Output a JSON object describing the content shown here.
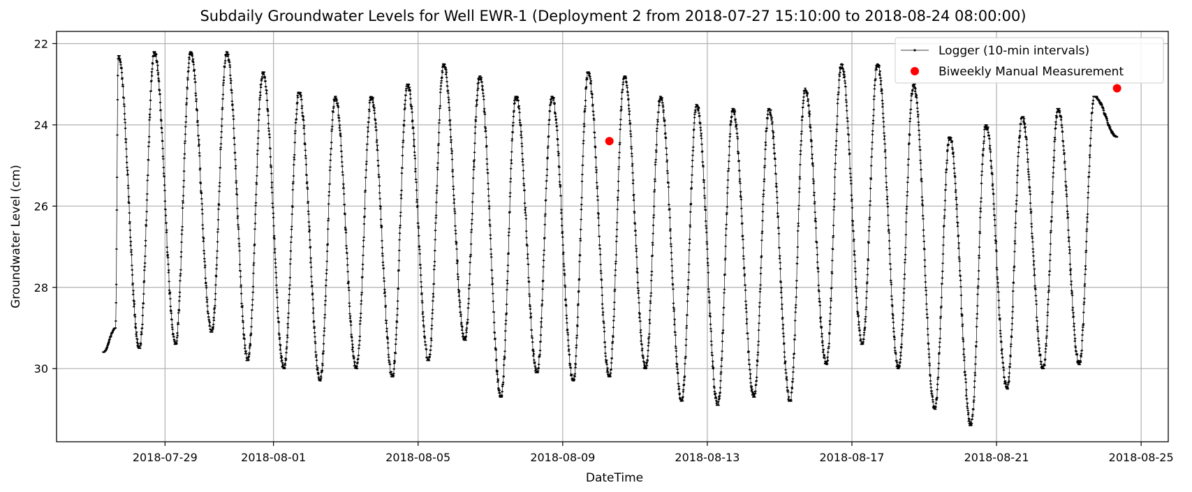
{
  "chart_data": {
    "type": "line",
    "title": "Subdaily Groundwater Levels for Well EWR-1 (Deployment 2 from 2018-07-27 15:10:00 to 2018-08-24 08:00:00)",
    "xlabel": "DateTime",
    "ylabel": "Groundwater Level (cm)",
    "xlim": [
      "2018-07-26 00:00",
      "2018-08-25 18:00"
    ],
    "ylim": [
      31.8,
      21.7
    ],
    "y_inverted": true,
    "grid": true,
    "legend_position": "top-right",
    "x_ticks": [
      "2018-07-29",
      "2018-08-01",
      "2018-08-05",
      "2018-08-09",
      "2018-08-13",
      "2018-08-17",
      "2018-08-21",
      "2018-08-25"
    ],
    "y_ticks": [
      22,
      24,
      26,
      28,
      30
    ],
    "logger": {
      "name": "Logger (10-min intervals)",
      "color": "#000000",
      "daily_cycles": [
        {
          "date": "2018-07-27",
          "min_level": 29.6,
          "max_level": 22.3
        },
        {
          "date": "2018-07-28",
          "min_level": 29.5,
          "max_level": 22.2
        },
        {
          "date": "2018-07-29",
          "min_level": 29.4,
          "max_level": 22.2
        },
        {
          "date": "2018-07-30",
          "min_level": 29.1,
          "max_level": 22.2
        },
        {
          "date": "2018-07-31",
          "min_level": 29.8,
          "max_level": 22.7
        },
        {
          "date": "2018-08-01",
          "min_level": 30.0,
          "max_level": 23.2
        },
        {
          "date": "2018-08-02",
          "min_level": 30.3,
          "max_level": 23.3
        },
        {
          "date": "2018-08-03",
          "min_level": 30.0,
          "max_level": 23.3
        },
        {
          "date": "2018-08-04",
          "min_level": 30.2,
          "max_level": 23.0
        },
        {
          "date": "2018-08-05",
          "min_level": 29.8,
          "max_level": 22.5
        },
        {
          "date": "2018-08-06",
          "min_level": 29.3,
          "max_level": 22.8
        },
        {
          "date": "2018-08-07",
          "min_level": 30.7,
          "max_level": 23.3
        },
        {
          "date": "2018-08-08",
          "min_level": 30.1,
          "max_level": 23.3
        },
        {
          "date": "2018-08-09",
          "min_level": 30.3,
          "max_level": 22.7
        },
        {
          "date": "2018-08-10",
          "min_level": 30.2,
          "max_level": 22.8
        },
        {
          "date": "2018-08-11",
          "min_level": 30.0,
          "max_level": 23.3
        },
        {
          "date": "2018-08-12",
          "min_level": 30.8,
          "max_level": 23.5
        },
        {
          "date": "2018-08-13",
          "min_level": 30.9,
          "max_level": 23.6
        },
        {
          "date": "2018-08-14",
          "min_level": 30.7,
          "max_level": 23.6
        },
        {
          "date": "2018-08-15",
          "min_level": 30.8,
          "max_level": 23.1
        },
        {
          "date": "2018-08-16",
          "min_level": 29.9,
          "max_level": 22.5
        },
        {
          "date": "2018-08-17",
          "min_level": 29.4,
          "max_level": 22.5
        },
        {
          "date": "2018-08-18",
          "min_level": 30.0,
          "max_level": 23.0
        },
        {
          "date": "2018-08-19",
          "min_level": 31.0,
          "max_level": 24.3
        },
        {
          "date": "2018-08-20",
          "min_level": 31.4,
          "max_level": 24.0
        },
        {
          "date": "2018-08-21",
          "min_level": 30.5,
          "max_level": 23.8
        },
        {
          "date": "2018-08-22",
          "min_level": 30.0,
          "max_level": 23.6
        },
        {
          "date": "2018-08-23",
          "min_level": 29.9,
          "max_level": 23.3
        }
      ],
      "start": {
        "datetime": "2018-07-27 15:10",
        "level": 29.0
      },
      "end": {
        "datetime": "2018-08-24 08:00",
        "level": 24.3
      }
    },
    "manual": {
      "name": "Biweekly Manual Measurement",
      "color": "#ff0000",
      "points": [
        {
          "datetime": "2018-08-10 07:00",
          "level": 24.4
        },
        {
          "datetime": "2018-08-24 08:00",
          "level": 23.1
        }
      ]
    }
  }
}
